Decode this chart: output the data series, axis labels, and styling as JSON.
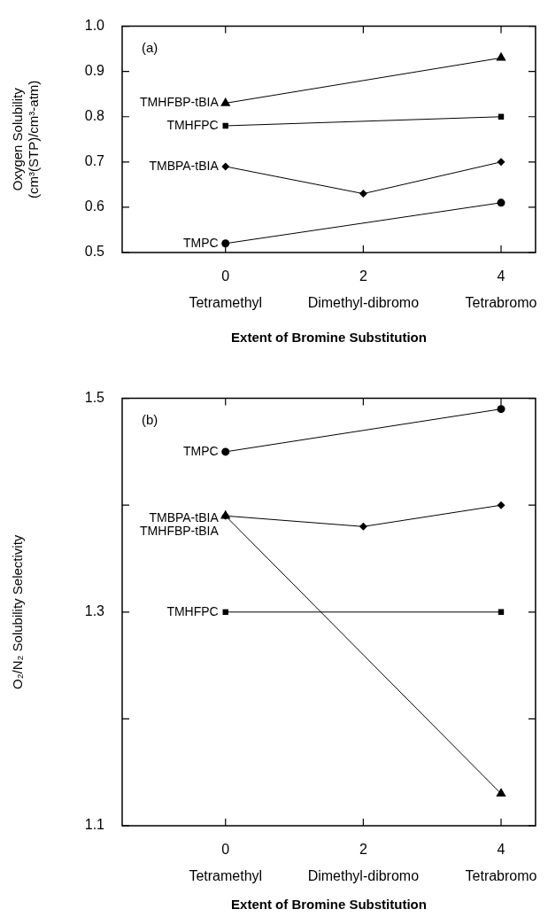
{
  "chart_data": [
    {
      "type": "line",
      "annotations": [
        "(a)"
      ],
      "ylabel": "Oxygen Solubility\n(cm³(STP)/cm³-atm)",
      "xlabel": "Extent of Bromine Substitution",
      "xlim": [
        -1.5,
        4.5
      ],
      "xticks": [
        {
          "value": 0,
          "label": "0\nTetramethyl"
        },
        {
          "value": 2,
          "label": "2\nDimethyl-dibromo"
        },
        {
          "value": 4,
          "label": "4\nTetrabromo"
        }
      ],
      "ylim": [
        0.5,
        1.0
      ],
      "yticks": [
        0.5,
        0.6,
        0.7,
        0.8,
        0.9,
        {
          "value": 1.0,
          "label": "1.0"
        }
      ],
      "grid": false,
      "legend": false,
      "series": [
        {
          "name": "TMPC",
          "color": "#000000",
          "marker": "circle",
          "x": [
            0,
            4
          ],
          "values": [
            0.52,
            0.61
          ]
        },
        {
          "name": "TMBPA-tBIA",
          "color": "#000000",
          "marker": "diamond",
          "x": [
            0,
            2,
            4
          ],
          "values": [
            0.69,
            0.63,
            0.7
          ]
        },
        {
          "name": "TMHFPC",
          "color": "#000000",
          "marker": "square",
          "x": [
            0,
            4
          ],
          "values": [
            0.78,
            0.8
          ]
        },
        {
          "name": "TMHFBP-tBIA",
          "color": "#000000",
          "marker": "triangle",
          "x": [
            0,
            4
          ],
          "values": [
            0.83,
            0.93
          ]
        }
      ]
    },
    {
      "type": "line",
      "annotations": [
        "(b)"
      ],
      "ylabel": "O₂/N₂ Solubility Selectivity",
      "xlabel": "Extent of Bromine Substitution",
      "xlim": [
        -1.5,
        4.5
      ],
      "xticks": [
        {
          "value": 0,
          "label": "0\nTetramethyl"
        },
        {
          "value": 2,
          "label": "2\nDimethyl-dibromo"
        },
        {
          "value": 4,
          "label": "4\nTetrabromo"
        }
      ],
      "ylim": [
        1.1,
        1.5
      ],
      "yticks": [
        1.1,
        {
          "value": 1.2,
          "label": null
        },
        1.3,
        {
          "value": 1.4,
          "label": null
        },
        1.5
      ],
      "grid": false,
      "legend": false,
      "series": [
        {
          "name": "TMPC",
          "color": "#000000",
          "marker": "circle",
          "x": [
            0,
            4
          ],
          "values": [
            1.45,
            1.49
          ]
        },
        {
          "name": "TMBPA-tBIA",
          "color": "#000000",
          "marker": "diamond",
          "x": [
            0,
            2,
            4
          ],
          "values": [
            1.39,
            1.38,
            1.4
          ]
        },
        {
          "name": "TMHFBP-tBIA",
          "color": "#000000",
          "marker": "triangle",
          "x": [
            0,
            4
          ],
          "values": [
            1.39,
            1.13
          ]
        },
        {
          "name": "TMHFPC",
          "color": "#000000",
          "marker": "square",
          "x": [
            0,
            4
          ],
          "values": [
            1.3,
            1.3
          ]
        }
      ]
    }
  ]
}
